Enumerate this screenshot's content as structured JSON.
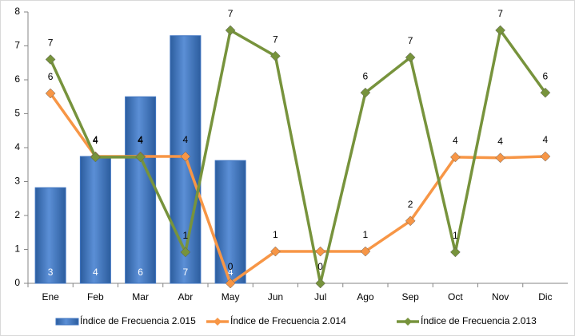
{
  "chart_data": {
    "type": "bar-line",
    "categories": [
      "Ene",
      "Feb",
      "Mar",
      "Abr",
      "May",
      "Jun",
      "Jul",
      "Ago",
      "Sep",
      "Oct",
      "Nov",
      "Dic"
    ],
    "ylim": [
      0,
      8
    ],
    "yticks": [
      0,
      1,
      2,
      3,
      4,
      5,
      6,
      7,
      8
    ],
    "legend": "bottom",
    "series": [
      {
        "name": "Índice de Frecuencia 2.015",
        "type": "bar",
        "color": "#3f74c0",
        "values": [
          2.82,
          3.74,
          5.5,
          7.3,
          3.62,
          null,
          null,
          null,
          null,
          null,
          null,
          null
        ],
        "value_labels": [
          "3",
          "4",
          "6",
          "7",
          "4",
          null,
          null,
          null,
          null,
          null,
          null,
          null
        ]
      },
      {
        "name": "Índice de Frecuencia 2.014",
        "type": "line",
        "color": "#f79646",
        "values": [
          5.6,
          3.74,
          3.74,
          3.74,
          0,
          0.94,
          0.94,
          0.94,
          1.84,
          3.72,
          3.7,
          3.74
        ],
        "value_labels": [
          "6",
          "4",
          "4",
          "4",
          "0",
          "1",
          null,
          "1",
          "2",
          "4",
          "4",
          "4"
        ]
      },
      {
        "name": "Índice de Frecuencia 2.013",
        "type": "line",
        "color": "#77933c",
        "values": [
          6.6,
          3.72,
          3.72,
          0.92,
          7.46,
          6.7,
          0,
          5.62,
          6.66,
          0.92,
          7.46,
          5.62
        ],
        "value_labels": [
          "7",
          "4",
          "4",
          "1",
          "7",
          "7",
          "0",
          "6",
          "7",
          "1",
          "7",
          "6"
        ]
      }
    ]
  }
}
